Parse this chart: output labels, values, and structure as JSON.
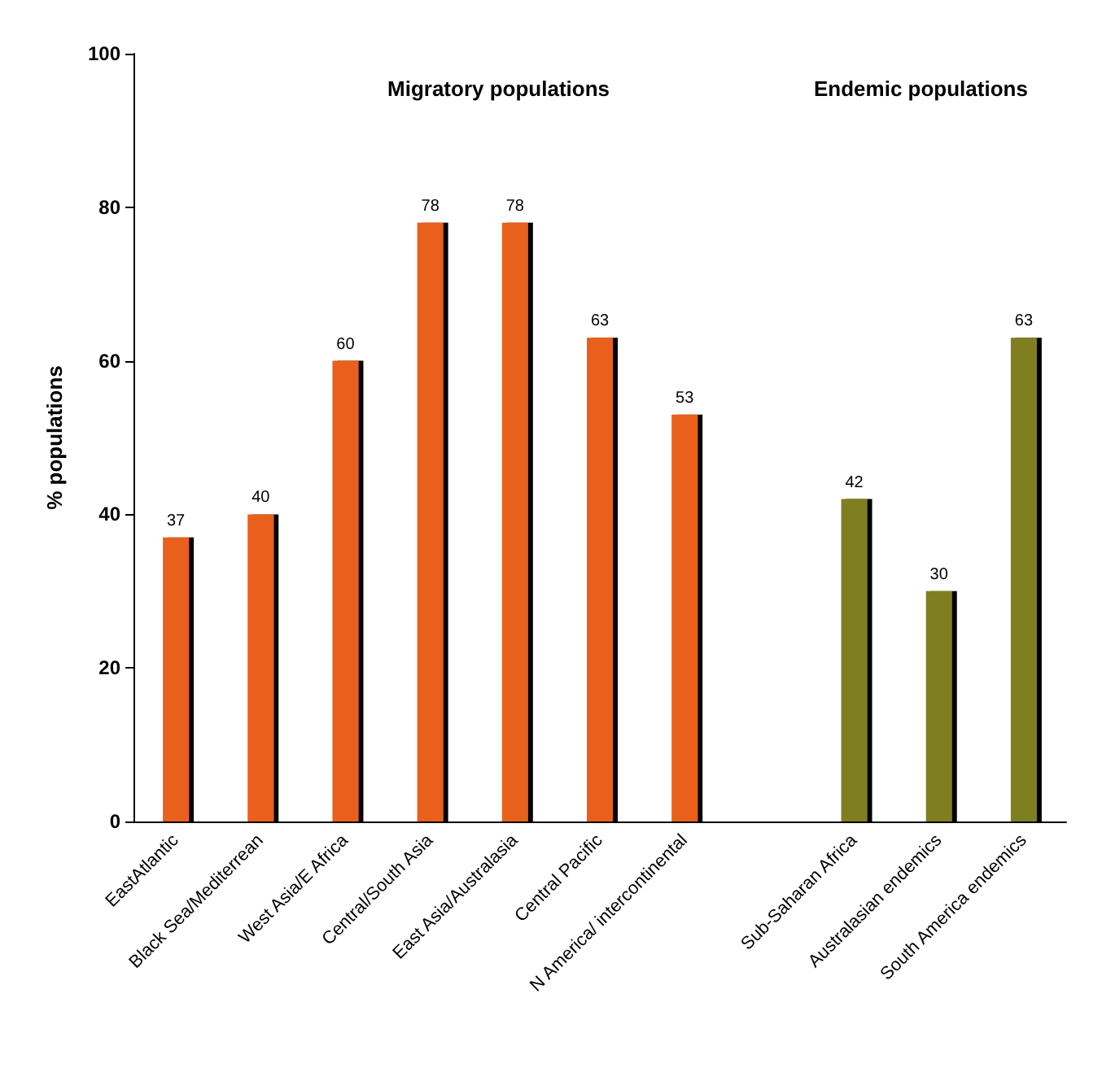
{
  "chart_data": {
    "type": "bar",
    "ylabel": "% populations",
    "categories": [
      "EastAtlantic",
      "Black Sea/Mediterrean",
      "West Asia/E Africa",
      "Central/South Asia",
      "East Asia/Australasia",
      "Central Pacific",
      "N America/ intercontinental",
      null,
      "Sub-Saharan Africa",
      "Australasian endemics",
      "South America endemics"
    ],
    "values": [
      37,
      40,
      60,
      78,
      78,
      63,
      53,
      null,
      42,
      30,
      63
    ],
    "colors": [
      "#e8601c",
      "#e8601c",
      "#e8601c",
      "#e8601c",
      "#e8601c",
      "#e8601c",
      "#e8601c",
      "#e8601c",
      "#7f7f20",
      "#7f7f20",
      "#7f7f20"
    ],
    "ylim": [
      0,
      100
    ],
    "yticks": [
      0,
      20,
      40,
      60,
      80,
      100
    ],
    "grid": false,
    "data_labels": true,
    "annotations": [
      "Migratory populations",
      "Endemic populations"
    ]
  }
}
